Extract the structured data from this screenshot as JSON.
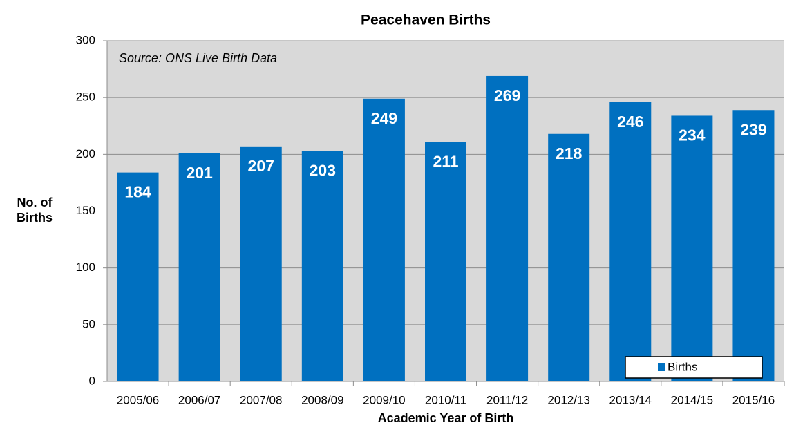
{
  "chart_data": {
    "type": "bar",
    "title": "Peacehaven Births",
    "annotation": "Source: ONS Live Birth Data",
    "x_label": "Academic Year of Birth",
    "y_label": "No. of Births",
    "categories": [
      "2005/06",
      "2006/07",
      "2007/08",
      "2008/09",
      "2009/10",
      "2010/11",
      "2011/12",
      "2012/13",
      "2013/14",
      "2014/15",
      "2015/16"
    ],
    "series": [
      {
        "name": "Births",
        "color": "#0070c0",
        "values": [
          184,
          201,
          207,
          203,
          249,
          211,
          269,
          218,
          246,
          234,
          239
        ]
      }
    ],
    "ylim": [
      0,
      300
    ],
    "yticks": [
      0,
      50,
      100,
      150,
      200,
      250,
      300
    ],
    "grid": true,
    "legend": "lower right"
  }
}
